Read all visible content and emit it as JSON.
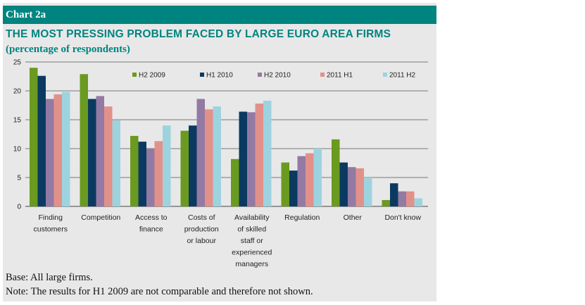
{
  "header": {
    "label": "Chart 2a"
  },
  "colors": {
    "header_bg": "#00847f",
    "title": "#00847f",
    "panel_bg": "#e8e8e8",
    "series": [
      "#6a9a1f",
      "#0b3a61",
      "#937aa4",
      "#e2918a",
      "#9dd3df"
    ]
  },
  "notes": {
    "base": "Base: All large firms.",
    "note": "Note: The results for H1 2009 are not comparable and therefore not shown."
  },
  "chart_data": {
    "type": "bar",
    "title": "THE MOST PRESSING PROBLEM FACED BY LARGE EURO AREA FIRMS",
    "subtitle": "(percentage of respondents)",
    "ylim": [
      0,
      25
    ],
    "yticks": [
      "0",
      "5",
      "10",
      "15",
      "20",
      "25"
    ],
    "grid": true,
    "legend_position": "top-right",
    "categories": [
      "Finding customers",
      "Competition",
      "Access to finance",
      "Costs of production or labour",
      "Availability of skilled staff or experienced managers",
      "Regulation",
      "Other",
      "Don't know"
    ],
    "category_lines": [
      [
        "Finding",
        "customers"
      ],
      [
        "Competition"
      ],
      [
        "Access to",
        "finance"
      ],
      [
        "Costs of",
        "production",
        "or labour"
      ],
      [
        "Availability",
        "of skilled",
        "staff or",
        "experienced",
        "managers"
      ],
      [
        "Regulation"
      ],
      [
        "Other"
      ],
      [
        "Don't know"
      ]
    ],
    "series": [
      {
        "name": "H2 2009",
        "values": [
          24.0,
          22.9,
          12.2,
          13.1,
          8.2,
          7.6,
          11.6,
          1.1
        ]
      },
      {
        "name": "H1 2010",
        "values": [
          22.6,
          18.6,
          11.2,
          14.0,
          16.4,
          6.2,
          7.6,
          4.0
        ]
      },
      {
        "name": "H2 2010",
        "values": [
          18.6,
          19.1,
          10.0,
          18.6,
          16.3,
          8.7,
          6.8,
          2.6
        ]
      },
      {
        "name": "2011 H1",
        "values": [
          19.4,
          17.3,
          11.3,
          16.8,
          17.8,
          9.2,
          6.6,
          2.6
        ]
      },
      {
        "name": "2011 H2",
        "values": [
          19.8,
          14.9,
          14.0,
          17.3,
          18.3,
          10.0,
          5.0,
          1.4
        ]
      }
    ]
  }
}
